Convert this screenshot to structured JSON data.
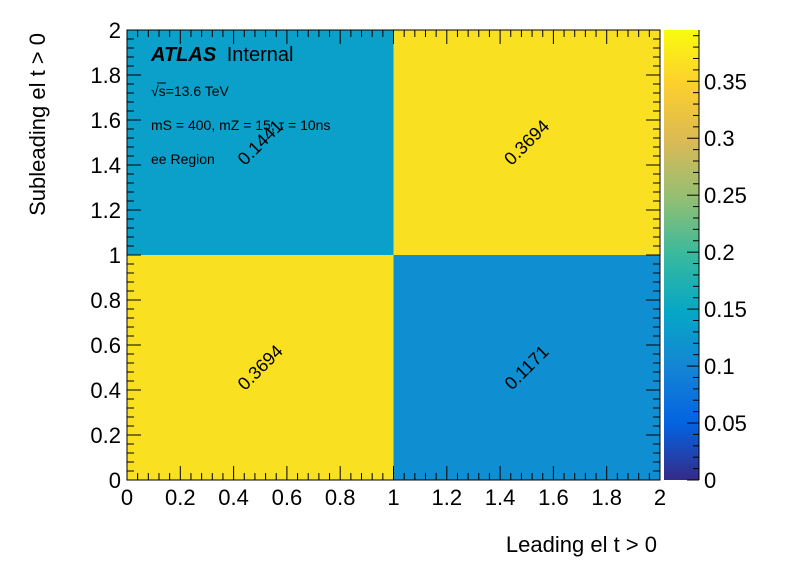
{
  "chart_data": {
    "type": "heatmap",
    "xlabel": "Leading el t > 0",
    "ylabel": "Subleading el t > 0",
    "xlim": [
      0,
      2
    ],
    "ylim": [
      0,
      2
    ],
    "x_ticks": [
      "0",
      "0.2",
      "0.4",
      "0.6",
      "0.8",
      "1",
      "1.2",
      "1.4",
      "1.6",
      "1.8",
      "2"
    ],
    "y_ticks": [
      "0",
      "0.2",
      "0.4",
      "0.6",
      "0.8",
      "1",
      "1.2",
      "1.4",
      "1.6",
      "1.8",
      "2"
    ],
    "cells": [
      {
        "x": [
          0,
          1
        ],
        "y": [
          0,
          1
        ],
        "value": 0.3694,
        "label": "0.3694",
        "color": "#f9e021"
      },
      {
        "x": [
          1,
          2
        ],
        "y": [
          0,
          1
        ],
        "value": 0.1171,
        "label": "0.1171",
        "color": "#0f8fd1"
      },
      {
        "x": [
          0,
          1
        ],
        "y": [
          1,
          2
        ],
        "value": 0.1441,
        "label": "0.1441",
        "color": "#0aa0c9"
      },
      {
        "x": [
          1,
          2
        ],
        "y": [
          1,
          2
        ],
        "value": 0.3694,
        "label": "0.3694",
        "color": "#f9e021"
      }
    ],
    "colorbar": {
      "min": 0,
      "max": 0.395,
      "ticks": [
        "0",
        "0.05",
        "0.1",
        "0.15",
        "0.2",
        "0.25",
        "0.3",
        "0.35"
      ],
      "stops": [
        "#352a87",
        "#0363e1",
        "#1485d4",
        "#06a7c6",
        "#38b99e",
        "#92bf73",
        "#d9ba56",
        "#fcce2e",
        "#f9fb0e"
      ]
    }
  },
  "annotations": {
    "atlas": "ATLAS",
    "internal": "Internal",
    "sqrt": "√s",
    "energy": "=13.6 TeV",
    "model": "mS = 400, mZ = 15, τ = 10ns",
    "region": "ee Region"
  }
}
